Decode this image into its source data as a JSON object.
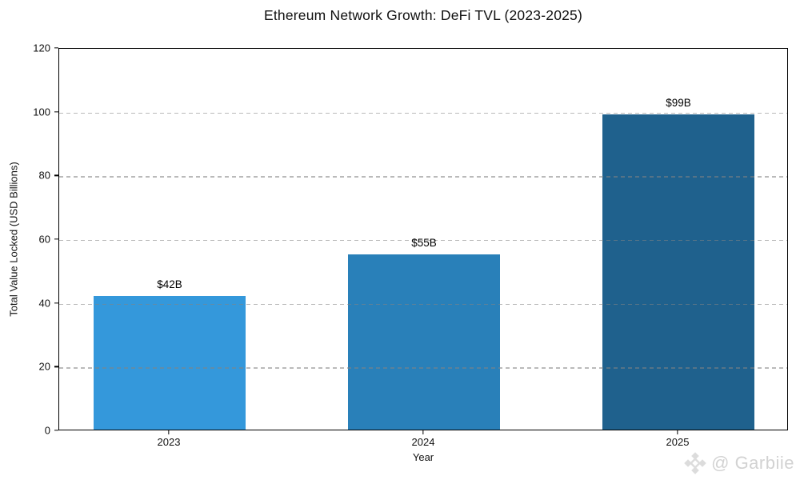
{
  "chart_data": {
    "type": "bar",
    "title": "Ethereum Network Growth: DeFi TVL (2023-2025)",
    "xlabel": "Year",
    "ylabel": "Total Value Locked (USD Billions)",
    "categories": [
      "2023",
      "2024",
      "2025"
    ],
    "values": [
      42,
      55,
      99
    ],
    "bar_value_labels": [
      "$42B",
      "$55B",
      "$99B"
    ],
    "bar_colors": [
      "#3498db",
      "#2980b9",
      "#1f618d"
    ],
    "yticks": [
      0,
      20,
      40,
      60,
      80,
      100,
      120
    ],
    "ylim": [
      0,
      120
    ],
    "grid": "horizontal-dashed",
    "grid_color": "#c4c4c4",
    "legend": "none",
    "spines": "full-box"
  },
  "watermark": {
    "text": "@ Garbiie",
    "icon": "bnb-diamond-icon",
    "color": "#d2d2d2"
  }
}
